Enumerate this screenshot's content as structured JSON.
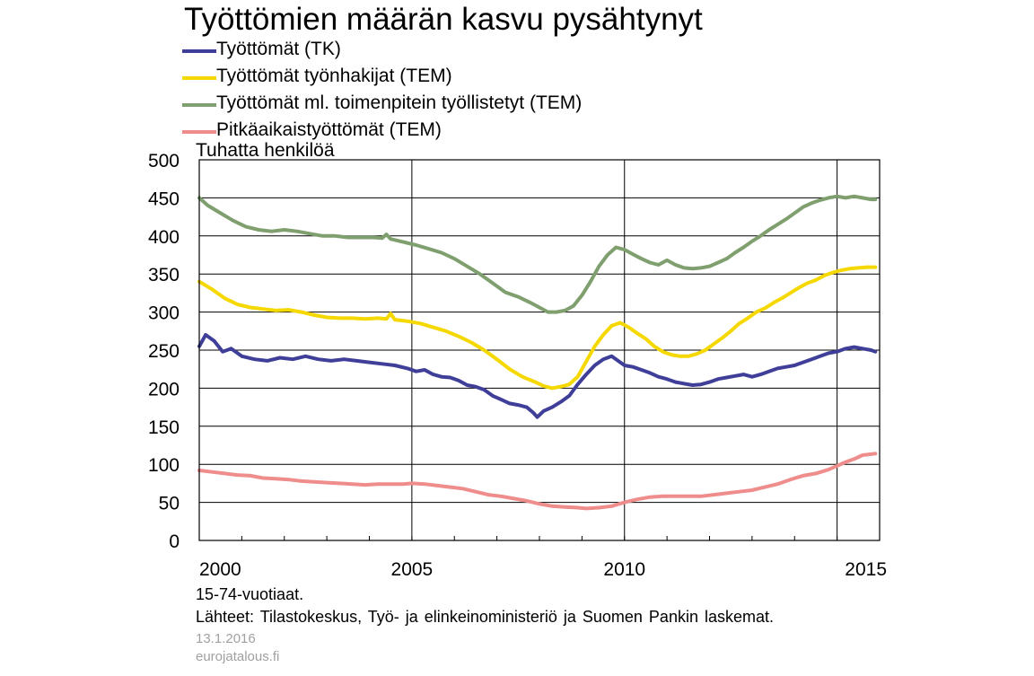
{
  "colors": {
    "tk": "#3f3f99",
    "tem_jobseekers": "#f5d800",
    "tem_incl_measures": "#7f9f6f",
    "longterm": "#ef8c8c"
  },
  "chart_data": {
    "type": "line",
    "title": "Työttömien määrän kasvu pysähtynyt",
    "ylabel": "Tuhatta henkilöä",
    "xlabel": "",
    "ylim": [
      0,
      500
    ],
    "xlim": [
      2000,
      2016
    ],
    "yticks": [
      "0",
      "50",
      "100",
      "150",
      "200",
      "250",
      "300",
      "350",
      "400",
      "450",
      "500"
    ],
    "xticks": [
      "2000",
      "2005",
      "2010",
      "2015"
    ],
    "grid": true,
    "legend": "top-left",
    "series": [
      {
        "name": "Työttömät (TK)",
        "color_key": "tk",
        "points": [
          [
            2000.0,
            255
          ],
          [
            2000.15,
            270
          ],
          [
            2000.35,
            262
          ],
          [
            2000.55,
            248
          ],
          [
            2000.75,
            252
          ],
          [
            2001.0,
            242
          ],
          [
            2001.3,
            238
          ],
          [
            2001.6,
            236
          ],
          [
            2001.9,
            240
          ],
          [
            2002.2,
            238
          ],
          [
            2002.5,
            242
          ],
          [
            2002.8,
            238
          ],
          [
            2003.1,
            236
          ],
          [
            2003.4,
            238
          ],
          [
            2003.7,
            236
          ],
          [
            2004.0,
            234
          ],
          [
            2004.3,
            232
          ],
          [
            2004.6,
            230
          ],
          [
            2004.9,
            226
          ],
          [
            2005.1,
            222
          ],
          [
            2005.3,
            224
          ],
          [
            2005.5,
            218
          ],
          [
            2005.7,
            215
          ],
          [
            2005.9,
            214
          ],
          [
            2006.1,
            210
          ],
          [
            2006.3,
            204
          ],
          [
            2006.5,
            202
          ],
          [
            2006.7,
            198
          ],
          [
            2006.9,
            190
          ],
          [
            2007.1,
            185
          ],
          [
            2007.3,
            180
          ],
          [
            2007.5,
            178
          ],
          [
            2007.7,
            175
          ],
          [
            2007.85,
            168
          ],
          [
            2007.95,
            162
          ],
          [
            2008.1,
            170
          ],
          [
            2008.3,
            175
          ],
          [
            2008.5,
            182
          ],
          [
            2008.7,
            190
          ],
          [
            2008.9,
            205
          ],
          [
            2009.1,
            218
          ],
          [
            2009.3,
            230
          ],
          [
            2009.5,
            238
          ],
          [
            2009.7,
            242
          ],
          [
            2009.85,
            236
          ],
          [
            2010.0,
            230
          ],
          [
            2010.2,
            228
          ],
          [
            2010.4,
            224
          ],
          [
            2010.6,
            220
          ],
          [
            2010.8,
            215
          ],
          [
            2011.0,
            212
          ],
          [
            2011.2,
            208
          ],
          [
            2011.4,
            206
          ],
          [
            2011.6,
            204
          ],
          [
            2011.8,
            205
          ],
          [
            2012.0,
            208
          ],
          [
            2012.2,
            212
          ],
          [
            2012.4,
            214
          ],
          [
            2012.6,
            216
          ],
          [
            2012.8,
            218
          ],
          [
            2013.0,
            215
          ],
          [
            2013.2,
            218
          ],
          [
            2013.4,
            222
          ],
          [
            2013.6,
            226
          ],
          [
            2013.8,
            228
          ],
          [
            2014.0,
            230
          ],
          [
            2014.2,
            234
          ],
          [
            2014.4,
            238
          ],
          [
            2014.6,
            242
          ],
          [
            2014.8,
            246
          ],
          [
            2015.0,
            248
          ],
          [
            2015.2,
            252
          ],
          [
            2015.4,
            254
          ],
          [
            2015.6,
            252
          ],
          [
            2015.8,
            250
          ],
          [
            2015.9,
            248
          ]
        ]
      },
      {
        "name": "Työttömät työnhakijat (TEM)",
        "color_key": "tem_jobseekers",
        "points": [
          [
            2000.0,
            340
          ],
          [
            2000.3,
            330
          ],
          [
            2000.6,
            318
          ],
          [
            2000.9,
            310
          ],
          [
            2001.2,
            306
          ],
          [
            2001.5,
            304
          ],
          [
            2001.8,
            302
          ],
          [
            2002.1,
            303
          ],
          [
            2002.4,
            300
          ],
          [
            2002.7,
            296
          ],
          [
            2003.0,
            293
          ],
          [
            2003.3,
            292
          ],
          [
            2003.6,
            292
          ],
          [
            2003.9,
            291
          ],
          [
            2004.2,
            292
          ],
          [
            2004.4,
            291
          ],
          [
            2004.5,
            298
          ],
          [
            2004.6,
            290
          ],
          [
            2004.9,
            288
          ],
          [
            2005.2,
            285
          ],
          [
            2005.5,
            280
          ],
          [
            2005.8,
            275
          ],
          [
            2006.1,
            268
          ],
          [
            2006.4,
            260
          ],
          [
            2006.7,
            250
          ],
          [
            2007.0,
            238
          ],
          [
            2007.3,
            225
          ],
          [
            2007.6,
            215
          ],
          [
            2007.9,
            208
          ],
          [
            2008.1,
            203
          ],
          [
            2008.3,
            200
          ],
          [
            2008.5,
            202
          ],
          [
            2008.7,
            205
          ],
          [
            2008.9,
            215
          ],
          [
            2009.1,
            235
          ],
          [
            2009.3,
            255
          ],
          [
            2009.5,
            270
          ],
          [
            2009.7,
            282
          ],
          [
            2009.9,
            286
          ],
          [
            2010.1,
            280
          ],
          [
            2010.3,
            272
          ],
          [
            2010.5,
            265
          ],
          [
            2010.7,
            255
          ],
          [
            2010.9,
            248
          ],
          [
            2011.1,
            244
          ],
          [
            2011.3,
            242
          ],
          [
            2011.5,
            242
          ],
          [
            2011.7,
            245
          ],
          [
            2011.9,
            250
          ],
          [
            2012.1,
            258
          ],
          [
            2012.3,
            266
          ],
          [
            2012.5,
            275
          ],
          [
            2012.7,
            285
          ],
          [
            2012.9,
            292
          ],
          [
            2013.1,
            300
          ],
          [
            2013.3,
            305
          ],
          [
            2013.5,
            312
          ],
          [
            2013.7,
            318
          ],
          [
            2013.9,
            325
          ],
          [
            2014.1,
            332
          ],
          [
            2014.3,
            338
          ],
          [
            2014.5,
            342
          ],
          [
            2014.7,
            348
          ],
          [
            2014.9,
            352
          ],
          [
            2015.1,
            355
          ],
          [
            2015.3,
            357
          ],
          [
            2015.5,
            358
          ],
          [
            2015.7,
            359
          ],
          [
            2015.9,
            359
          ]
        ]
      },
      {
        "name": "Työttömät ml. toimenpitein työllistetyt (TEM)",
        "color_key": "tem_incl_measures",
        "points": [
          [
            2000.0,
            450
          ],
          [
            2000.2,
            440
          ],
          [
            2000.5,
            430
          ],
          [
            2000.8,
            420
          ],
          [
            2001.1,
            412
          ],
          [
            2001.4,
            408
          ],
          [
            2001.7,
            406
          ],
          [
            2002.0,
            408
          ],
          [
            2002.3,
            406
          ],
          [
            2002.6,
            403
          ],
          [
            2002.9,
            400
          ],
          [
            2003.2,
            400
          ],
          [
            2003.5,
            398
          ],
          [
            2003.8,
            398
          ],
          [
            2004.1,
            398
          ],
          [
            2004.3,
            397
          ],
          [
            2004.4,
            402
          ],
          [
            2004.5,
            396
          ],
          [
            2004.8,
            392
          ],
          [
            2005.1,
            388
          ],
          [
            2005.4,
            383
          ],
          [
            2005.7,
            378
          ],
          [
            2006.0,
            370
          ],
          [
            2006.3,
            360
          ],
          [
            2006.6,
            350
          ],
          [
            2006.9,
            338
          ],
          [
            2007.2,
            326
          ],
          [
            2007.5,
            320
          ],
          [
            2007.8,
            312
          ],
          [
            2008.0,
            306
          ],
          [
            2008.2,
            300
          ],
          [
            2008.4,
            300
          ],
          [
            2008.6,
            302
          ],
          [
            2008.8,
            308
          ],
          [
            2009.0,
            322
          ],
          [
            2009.2,
            340
          ],
          [
            2009.4,
            360
          ],
          [
            2009.6,
            375
          ],
          [
            2009.8,
            385
          ],
          [
            2010.0,
            382
          ],
          [
            2010.2,
            376
          ],
          [
            2010.4,
            370
          ],
          [
            2010.6,
            365
          ],
          [
            2010.8,
            362
          ],
          [
            2011.0,
            368
          ],
          [
            2011.2,
            362
          ],
          [
            2011.4,
            358
          ],
          [
            2011.6,
            357
          ],
          [
            2011.8,
            358
          ],
          [
            2012.0,
            360
          ],
          [
            2012.2,
            365
          ],
          [
            2012.4,
            370
          ],
          [
            2012.6,
            378
          ],
          [
            2012.8,
            385
          ],
          [
            2013.0,
            393
          ],
          [
            2013.2,
            400
          ],
          [
            2013.4,
            408
          ],
          [
            2013.6,
            415
          ],
          [
            2013.8,
            422
          ],
          [
            2014.0,
            430
          ],
          [
            2014.2,
            438
          ],
          [
            2014.4,
            443
          ],
          [
            2014.6,
            447
          ],
          [
            2014.8,
            450
          ],
          [
            2015.0,
            452
          ],
          [
            2015.2,
            450
          ],
          [
            2015.4,
            452
          ],
          [
            2015.6,
            450
          ],
          [
            2015.8,
            448
          ],
          [
            2015.9,
            448
          ]
        ]
      },
      {
        "name": "Pitkäaikaistyöttömät (TEM)",
        "color_key": "longterm",
        "points": [
          [
            2000.0,
            92
          ],
          [
            2000.3,
            90
          ],
          [
            2000.6,
            88
          ],
          [
            2000.9,
            86
          ],
          [
            2001.2,
            85
          ],
          [
            2001.5,
            82
          ],
          [
            2001.8,
            81
          ],
          [
            2002.1,
            80
          ],
          [
            2002.4,
            78
          ],
          [
            2002.7,
            77
          ],
          [
            2003.0,
            76
          ],
          [
            2003.3,
            75
          ],
          [
            2003.6,
            74
          ],
          [
            2003.9,
            73
          ],
          [
            2004.2,
            74
          ],
          [
            2004.5,
            74
          ],
          [
            2004.8,
            74
          ],
          [
            2005.0,
            75
          ],
          [
            2005.3,
            74
          ],
          [
            2005.6,
            72
          ],
          [
            2005.9,
            70
          ],
          [
            2006.2,
            68
          ],
          [
            2006.5,
            64
          ],
          [
            2006.8,
            60
          ],
          [
            2007.1,
            58
          ],
          [
            2007.4,
            55
          ],
          [
            2007.7,
            52
          ],
          [
            2008.0,
            48
          ],
          [
            2008.3,
            45
          ],
          [
            2008.6,
            44
          ],
          [
            2008.9,
            43
          ],
          [
            2009.1,
            42
          ],
          [
            2009.4,
            43
          ],
          [
            2009.7,
            45
          ],
          [
            2010.0,
            50
          ],
          [
            2010.3,
            54
          ],
          [
            2010.6,
            57
          ],
          [
            2010.9,
            58
          ],
          [
            2011.2,
            58
          ],
          [
            2011.5,
            58
          ],
          [
            2011.8,
            58
          ],
          [
            2012.1,
            60
          ],
          [
            2012.4,
            62
          ],
          [
            2012.7,
            64
          ],
          [
            2013.0,
            66
          ],
          [
            2013.3,
            70
          ],
          [
            2013.6,
            74
          ],
          [
            2013.9,
            80
          ],
          [
            2014.2,
            85
          ],
          [
            2014.5,
            88
          ],
          [
            2014.8,
            93
          ],
          [
            2015.0,
            98
          ],
          [
            2015.2,
            103
          ],
          [
            2015.4,
            107
          ],
          [
            2015.6,
            112
          ],
          [
            2015.9,
            114
          ]
        ]
      }
    ]
  },
  "footer": {
    "note": "15-74-vuotiaat.",
    "sources": "Lähteet: Tilastokeskus, Työ- ja elinkeinoministeriö ja Suomen Pankin laskemat.",
    "date": "13.1.2016",
    "site": "eurojatalous.fi"
  }
}
